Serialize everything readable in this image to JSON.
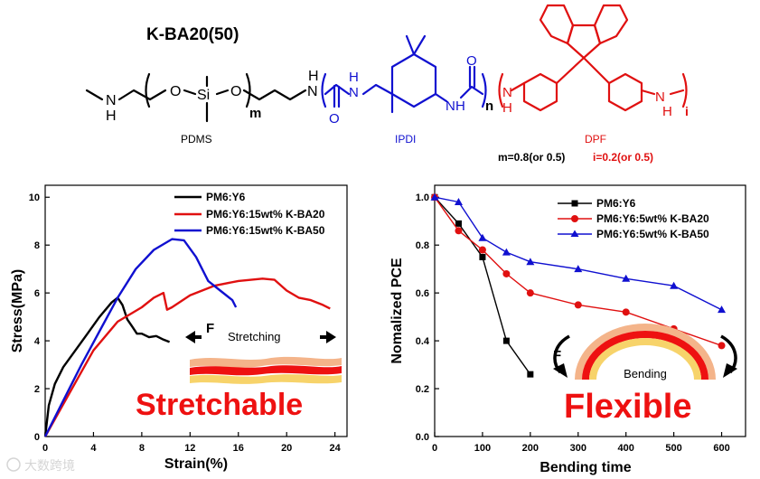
{
  "molecule": {
    "name": "K-BA20(50)",
    "atoms": {
      "N": "N",
      "H": "H",
      "O": "O",
      "Si": "Si"
    },
    "subscripts": {
      "m": "m",
      "n": "n",
      "i": "i"
    },
    "segments": {
      "pdms": "PDMS",
      "ipdi": "IPDI",
      "dpf": "DPF"
    },
    "ratio_m": "m=0.8(or 0.5)",
    "ratio_i": "i=0.2(or 0.5)",
    "colors": {
      "pdms": "#000000",
      "ipdi": "#1010d0",
      "dpf": "#e01010"
    }
  },
  "labels": {
    "stretching": "Stretching",
    "stretchable": "Stretchable",
    "bending": "Bending",
    "flexible": "Flexible",
    "force_left": "F",
    "force_right": "F",
    "watermark": "大数跨境"
  },
  "chart_data": [
    {
      "type": "line",
      "xlabel": "Strain(%)",
      "ylabel": "Stress(MPa)",
      "xlim": [
        0,
        25
      ],
      "ylim": [
        0,
        10.5
      ],
      "xticks": [
        0,
        4,
        8,
        12,
        16,
        20,
        24
      ],
      "yticks": [
        0,
        2,
        4,
        6,
        8,
        10
      ],
      "legend": "top-right",
      "grid": false,
      "series": [
        {
          "name": "PM6:Y6",
          "color": "#000000",
          "x": [
            0,
            0.3,
            0.8,
            1.5,
            2.5,
            3.5,
            4.5,
            5.5,
            6.0,
            6.4,
            6.8,
            7.2,
            7.6,
            8.0,
            8.6,
            9.2,
            9.8,
            10.3
          ],
          "y": [
            0,
            1.3,
            2.2,
            2.9,
            3.6,
            4.3,
            5.0,
            5.6,
            5.8,
            5.5,
            4.9,
            4.6,
            4.3,
            4.3,
            4.15,
            4.2,
            4.05,
            3.95
          ]
        },
        {
          "name": "PM6:Y6:15wt%  K-BA20",
          "color": "#e01010",
          "x": [
            0,
            2,
            4,
            6,
            8,
            9,
            9.8,
            10.1,
            10.5,
            12,
            14,
            16,
            18,
            19,
            20,
            21,
            22,
            23,
            23.6
          ],
          "y": [
            0,
            1.8,
            3.6,
            4.8,
            5.4,
            5.8,
            6.0,
            5.3,
            5.4,
            5.9,
            6.3,
            6.5,
            6.6,
            6.55,
            6.1,
            5.8,
            5.7,
            5.5,
            5.35
          ]
        },
        {
          "name": "PM6:Y6:15wt%  K-BA50",
          "color": "#1010d0",
          "x": [
            0,
            1.5,
            3,
            4.5,
            6,
            7.5,
            9,
            10.5,
            11.5,
            12.5,
            13.5,
            14.5,
            15.5,
            15.8
          ],
          "y": [
            0,
            1.5,
            3.0,
            4.4,
            5.8,
            7.0,
            7.8,
            8.25,
            8.2,
            7.5,
            6.5,
            6.1,
            5.7,
            5.4
          ]
        }
      ]
    },
    {
      "type": "line",
      "xlabel": "Bending time",
      "ylabel": "Nomalized PCE",
      "xlim": [
        0,
        650
      ],
      "ylim": [
        0,
        1.05
      ],
      "xticks": [
        0,
        100,
        200,
        300,
        400,
        500,
        600
      ],
      "yticks": [
        0.0,
        0.2,
        0.4,
        0.6,
        0.8,
        1.0
      ],
      "legend": "top-right",
      "grid": false,
      "series": [
        {
          "name": "PM6:Y6",
          "color": "#000000",
          "marker": "square",
          "x": [
            0,
            50,
            100,
            150,
            200
          ],
          "y": [
            1.0,
            0.89,
            0.75,
            0.4,
            0.26
          ]
        },
        {
          "name": "PM6:Y6:5wt%  K-BA20",
          "color": "#e01010",
          "marker": "circle",
          "x": [
            0,
            50,
            100,
            150,
            200,
            300,
            400,
            500,
            600
          ],
          "y": [
            1.0,
            0.86,
            0.78,
            0.68,
            0.6,
            0.55,
            0.52,
            0.45,
            0.38
          ]
        },
        {
          "name": "PM6:Y6:5wt%  K-BA50",
          "color": "#1010d0",
          "marker": "triangle",
          "x": [
            0,
            50,
            100,
            150,
            200,
            300,
            400,
            500,
            600
          ],
          "y": [
            1.0,
            0.98,
            0.83,
            0.77,
            0.73,
            0.7,
            0.66,
            0.63,
            0.53
          ]
        }
      ]
    }
  ]
}
